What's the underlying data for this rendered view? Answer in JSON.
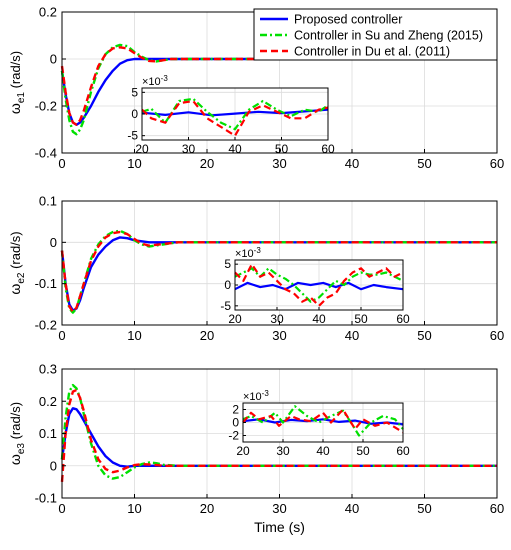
{
  "chart_data": [
    {
      "type": "line",
      "ylabel_main": "ω",
      "ylabel_sub": "e1",
      "ylabel_unit": " (rad/s)",
      "xlim": [
        0,
        60
      ],
      "ylim": [
        -0.4,
        0.2
      ],
      "xticks": [
        0,
        10,
        20,
        30,
        40,
        50,
        60
      ],
      "yticks": [
        -0.4,
        -0.2,
        0,
        0.2
      ],
      "ytick_labels": [
        "-0.4",
        "-0.2",
        "0",
        "0.2"
      ],
      "grid": true,
      "series": [
        {
          "name": "Proposed controller",
          "x": [
            0,
            0.5,
            1,
            1.5,
            2,
            2.5,
            3,
            4,
            5,
            6,
            7,
            8,
            9,
            10,
            12,
            15,
            60
          ],
          "y": [
            -0.05,
            -0.15,
            -0.23,
            -0.27,
            -0.28,
            -0.27,
            -0.25,
            -0.2,
            -0.14,
            -0.09,
            -0.05,
            -0.02,
            -0.005,
            0,
            0,
            0,
            0
          ]
        },
        {
          "name": "Controller in Su and Zheng (2015)",
          "x": [
            0,
            0.5,
            1,
            1.5,
            2,
            2.5,
            3,
            3.5,
            4,
            5,
            6,
            7,
            8,
            9,
            10,
            11,
            12,
            13,
            14,
            15,
            17,
            20,
            60
          ],
          "y": [
            -0.05,
            -0.17,
            -0.26,
            -0.31,
            -0.32,
            -0.3,
            -0.26,
            -0.2,
            -0.14,
            -0.04,
            0.02,
            0.05,
            0.06,
            0.055,
            0.03,
            0.01,
            -0.005,
            -0.01,
            -0.005,
            0,
            0,
            0,
            0
          ]
        },
        {
          "name": "Controller in Du et al. (2011)",
          "x": [
            0,
            0.5,
            1,
            1.5,
            2,
            2.5,
            3,
            3.5,
            4,
            5,
            6,
            7,
            8,
            9,
            10,
            11,
            12,
            13,
            14,
            15,
            17,
            20,
            60
          ],
          "y": [
            -0.03,
            -0.14,
            -0.23,
            -0.27,
            -0.28,
            -0.26,
            -0.22,
            -0.17,
            -0.12,
            -0.03,
            0.02,
            0.045,
            0.05,
            0.045,
            0.025,
            0.005,
            -0.008,
            -0.01,
            -0.005,
            0,
            0,
            0,
            0
          ]
        }
      ],
      "inset": {
        "exponent_label": "×10",
        "exponent_power": "-3",
        "xlim": [
          20,
          60
        ],
        "ylim": [
          -6,
          6
        ],
        "xticks": [
          20,
          30,
          40,
          50,
          60
        ],
        "yticks": [
          -5,
          0,
          5
        ],
        "ytick_labels": [
          "-5",
          "0",
          "5"
        ],
        "series": [
          {
            "x": [
              20,
              25,
              30,
              35,
              40,
              45,
              50,
              55,
              60
            ],
            "y": [
              0.3,
              -0.2,
              0.4,
              -0.3,
              0.1,
              0.5,
              0.2,
              0.6,
              1.0
            ]
          },
          {
            "x": [
              20,
              22,
              25,
              28,
              31,
              34,
              37,
              40,
              43,
              46,
              49,
              52,
              55,
              58,
              60
            ],
            "y": [
              0.5,
              1.2,
              -2,
              3,
              3.5,
              0.5,
              -2,
              -3.5,
              1,
              3,
              1,
              -0.5,
              1,
              0.5,
              2
            ]
          },
          {
            "x": [
              20,
              22,
              25,
              28,
              31,
              34,
              37,
              40,
              43,
              46,
              49,
              52,
              55,
              58,
              60
            ],
            "y": [
              1,
              -1,
              -2,
              2.5,
              3,
              -1,
              -3,
              -5,
              0.5,
              2,
              0.5,
              -1,
              -1,
              1,
              1.5
            ]
          }
        ]
      }
    },
    {
      "type": "line",
      "ylabel_main": "ω",
      "ylabel_sub": "e2",
      "ylabel_unit": " (rad/s)",
      "xlim": [
        0,
        60
      ],
      "ylim": [
        -0.2,
        0.1
      ],
      "xticks": [
        0,
        10,
        20,
        30,
        40,
        50,
        60
      ],
      "yticks": [
        -0.2,
        -0.1,
        0,
        0.1
      ],
      "ytick_labels": [
        "-0.2",
        "-0.1",
        "0",
        "0.1"
      ],
      "grid": true,
      "series": [
        {
          "name": "Proposed controller",
          "x": [
            0,
            0.5,
            1,
            1.5,
            2,
            2.5,
            3,
            4,
            5,
            6,
            7,
            8,
            9,
            10,
            12,
            15,
            60
          ],
          "y": [
            -0.02,
            -0.1,
            -0.15,
            -0.165,
            -0.16,
            -0.14,
            -0.11,
            -0.06,
            -0.03,
            -0.01,
            0.005,
            0.012,
            0.01,
            0.005,
            0,
            0,
            0
          ]
        },
        {
          "name": "Controller in Su and Zheng (2015)",
          "x": [
            0,
            0.5,
            1,
            1.5,
            2,
            2.5,
            3,
            4,
            5,
            6,
            7,
            8,
            9,
            10,
            11,
            12,
            14,
            16,
            20,
            60
          ],
          "y": [
            -0.02,
            -0.11,
            -0.16,
            -0.17,
            -0.16,
            -0.13,
            -0.1,
            -0.04,
            -0.005,
            0.015,
            0.025,
            0.028,
            0.02,
            0.005,
            -0.005,
            -0.01,
            -0.005,
            0,
            0,
            0
          ]
        },
        {
          "name": "Controller in Du et al. (2011)",
          "x": [
            0,
            0.5,
            1,
            1.5,
            2,
            2.5,
            3,
            4,
            5,
            6,
            7,
            8,
            9,
            10,
            11,
            12,
            14,
            16,
            20,
            60
          ],
          "y": [
            -0.02,
            -0.1,
            -0.155,
            -0.168,
            -0.158,
            -0.13,
            -0.1,
            -0.045,
            -0.01,
            0.012,
            0.022,
            0.025,
            0.02,
            0.008,
            -0.003,
            -0.008,
            -0.004,
            0,
            0,
            0
          ]
        }
      ],
      "inset": {
        "exponent_label": "×10",
        "exponent_power": "-3",
        "xlim": [
          20,
          60
        ],
        "ylim": [
          -6,
          6
        ],
        "xticks": [
          20,
          30,
          40,
          50,
          60
        ],
        "yticks": [
          -5,
          0,
          5
        ],
        "ytick_labels": [
          "-5",
          "0",
          "5"
        ],
        "series": [
          {
            "x": [
              20,
              23,
              26,
              29,
              32,
              35,
              38,
              41,
              44,
              47,
              50,
              53,
              56,
              60
            ],
            "y": [
              -1,
              0.5,
              -0.5,
              0,
              -1,
              0.5,
              0,
              0.5,
              -0.5,
              0.5,
              -1,
              0,
              -0.5,
              -1
            ]
          },
          {
            "x": [
              20,
              22,
              24,
              26,
              28,
              30,
              32,
              34,
              36,
              38,
              40,
              42,
              44,
              46,
              48,
              50,
              52,
              54,
              56,
              58,
              60
            ],
            "y": [
              2,
              3,
              4,
              2,
              4,
              2.5,
              1.5,
              0,
              -2,
              -4,
              -3,
              -1,
              1,
              0,
              2,
              3,
              2.5,
              2.5,
              3,
              2,
              1
            ]
          },
          {
            "x": [
              20,
              22,
              24,
              26,
              28,
              30,
              32,
              34,
              36,
              38,
              40,
              42,
              44,
              46,
              48,
              50,
              52,
              54,
              56,
              58,
              60
            ],
            "y": [
              3,
              1,
              5,
              2,
              3,
              1,
              -1,
              -2,
              -4,
              -3,
              -5,
              -3,
              -2,
              1,
              3,
              4,
              2,
              3,
              4,
              2,
              3
            ]
          }
        ]
      }
    },
    {
      "type": "line",
      "ylabel_main": "ω",
      "ylabel_sub": "e3",
      "ylabel_unit": " (rad/s)",
      "xlabel": "Time (s)",
      "xlim": [
        0,
        60
      ],
      "ylim": [
        -0.1,
        0.3
      ],
      "xticks": [
        0,
        10,
        20,
        30,
        40,
        50,
        60
      ],
      "yticks": [
        -0.1,
        0,
        0.1,
        0.2,
        0.3
      ],
      "ytick_labels": [
        "-0.1",
        "0",
        "0.1",
        "0.2",
        "0.3"
      ],
      "grid": true,
      "series": [
        {
          "name": "Proposed controller",
          "x": [
            0,
            0.5,
            1,
            1.5,
            2,
            2.5,
            3,
            4,
            5,
            6,
            7,
            8,
            9,
            10,
            12,
            15,
            60
          ],
          "y": [
            0.02,
            0.1,
            0.16,
            0.178,
            0.175,
            0.16,
            0.14,
            0.1,
            0.06,
            0.03,
            0.01,
            0,
            -0.003,
            0,
            0,
            0,
            0
          ]
        },
        {
          "name": "Controller in Su and Zheng (2015)",
          "x": [
            0,
            0.5,
            1,
            1.5,
            2,
            2.5,
            3,
            4,
            5,
            6,
            7,
            8,
            9,
            10,
            11,
            12,
            13,
            14,
            16,
            20,
            60
          ],
          "y": [
            0.02,
            0.15,
            0.23,
            0.25,
            0.24,
            0.21,
            0.16,
            0.07,
            0,
            -0.03,
            -0.04,
            -0.035,
            -0.02,
            -0.005,
            0.005,
            0.01,
            0.008,
            0.003,
            0,
            0,
            0
          ]
        },
        {
          "name": "Controller in Du et al. (2011)",
          "x": [
            0,
            0.5,
            1,
            1.5,
            2,
            2.5,
            3,
            4,
            5,
            6,
            7,
            8,
            9,
            10,
            11,
            12,
            13,
            14,
            16,
            20,
            60
          ],
          "y": [
            -0.05,
            0.1,
            0.19,
            0.23,
            0.235,
            0.21,
            0.17,
            0.08,
            0.02,
            -0.01,
            -0.02,
            -0.015,
            -0.005,
            0.002,
            0.005,
            0.004,
            0.002,
            0,
            0,
            0,
            0
          ]
        }
      ],
      "inset": {
        "exponent_label": "×10",
        "exponent_power": "-3",
        "xlim": [
          20,
          60
        ],
        "ylim": [
          -3,
          3
        ],
        "xticks": [
          20,
          30,
          40,
          50,
          60
        ],
        "yticks": [
          -2,
          0,
          2
        ],
        "ytick_labels": [
          "-2",
          "0",
          "2"
        ],
        "series": [
          {
            "x": [
              20,
              24,
              28,
              32,
              36,
              40,
              44,
              48,
              52,
              56,
              60
            ],
            "y": [
              0.2,
              0.5,
              0,
              0.4,
              0.2,
              0.5,
              0.1,
              0.3,
              -0.2,
              0,
              -0.3
            ]
          },
          {
            "x": [
              20,
              22,
              25,
              28,
              30,
              33,
              36,
              39,
              42,
              45,
              47,
              49,
              52,
              55,
              58,
              60
            ],
            "y": [
              0.5,
              1,
              0,
              1.5,
              0,
              2.5,
              1,
              0,
              1,
              1.8,
              0,
              -2,
              0,
              1,
              0.5,
              -1
            ]
          },
          {
            "x": [
              20,
              22,
              24,
              27,
              29,
              32,
              34,
              37,
              40,
              42,
              45,
              48,
              50,
              53,
              56,
              60
            ],
            "y": [
              0,
              1.5,
              0.5,
              1,
              -0.5,
              1,
              0.5,
              0.2,
              1.5,
              0,
              2,
              -1,
              0.5,
              -0.5,
              0,
              -1.5
            ]
          }
        ]
      }
    }
  ],
  "legend": {
    "entries": [
      {
        "label": "Proposed controller",
        "color": "#0000ff",
        "dash": "solid"
      },
      {
        "label": "Controller in Su and Zheng (2015)",
        "color": "#00ff00",
        "dash": "dashdot"
      },
      {
        "label": "Controller in Du et al. (2011)",
        "color": "#ff0000",
        "dash": "dashed"
      }
    ]
  },
  "colors": {
    "series": [
      "#0000ff",
      "#00e000",
      "#ff0000"
    ],
    "grid": "#dcdcdc",
    "axis": "#000000"
  }
}
